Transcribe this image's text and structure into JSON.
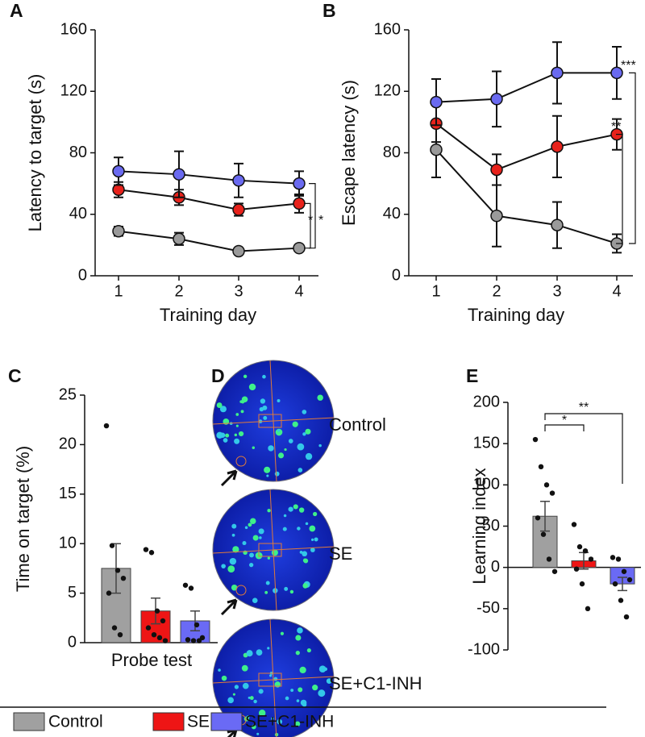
{
  "chart_data": [
    {
      "panel": "A",
      "type": "line",
      "ylabel": "Latency to target (s)",
      "xlabel": "Training day",
      "categories": [
        "1",
        "2",
        "3",
        "4"
      ],
      "ylim": [
        0,
        160
      ],
      "yticks": [
        0,
        40,
        80,
        120,
        160
      ],
      "series": [
        {
          "name": "Control",
          "color": "#9a9a9a",
          "values": [
            29,
            24,
            16,
            18
          ],
          "errors": [
            3,
            4,
            2,
            2
          ]
        },
        {
          "name": "SE",
          "color": "#e8221b",
          "values": [
            56,
            51,
            43,
            47
          ],
          "errors": [
            5,
            5,
            4,
            6
          ]
        },
        {
          "name": "SE+C1-INH",
          "color": "#6a6af0",
          "values": [
            68,
            66,
            62,
            60
          ],
          "errors": [
            9,
            15,
            11,
            8
          ]
        }
      ],
      "annotations": [
        "*",
        "*"
      ]
    },
    {
      "panel": "B",
      "type": "line",
      "ylabel": "Escape latency (s)",
      "xlabel": "Training day",
      "categories": [
        "1",
        "2",
        "3",
        "4"
      ],
      "ylim": [
        0,
        160
      ],
      "yticks": [
        0,
        40,
        80,
        120,
        160
      ],
      "series": [
        {
          "name": "Control",
          "color": "#9a9a9a",
          "values": [
            82,
            39,
            33,
            21
          ],
          "errors": [
            18,
            20,
            15,
            6
          ]
        },
        {
          "name": "SE",
          "color": "#e8221b",
          "values": [
            99,
            69,
            84,
            92
          ],
          "errors": [
            12,
            10,
            20,
            10
          ]
        },
        {
          "name": "SE+C1-INH",
          "color": "#6a6af0",
          "values": [
            113,
            115,
            132,
            132
          ],
          "errors": [
            15,
            18,
            20,
            17
          ]
        }
      ],
      "annotations": [
        "***",
        "**"
      ]
    },
    {
      "panel": "C",
      "type": "bar",
      "ylabel": "Time on target (%)",
      "xlabel": "Probe test",
      "ylim": [
        0,
        25
      ],
      "yticks": [
        0,
        5,
        10,
        15,
        20,
        25
      ],
      "colors": [
        "#a0a0a0",
        "#ee1515",
        "#6a6af5"
      ],
      "values": [
        7.5,
        3.2,
        2.2
      ],
      "errors": [
        2.5,
        1.3,
        1.0
      ],
      "points": [
        [
          21.9,
          9.8,
          7.3,
          6.5,
          5.0,
          1.5,
          0.8
        ],
        [
          9.4,
          9.1,
          3.2,
          2.2,
          1.5,
          0.8,
          0.5,
          0.2
        ],
        [
          5.8,
          5.5,
          1.8,
          0.5,
          0.3,
          0.2,
          0.2
        ]
      ],
      "annotations": []
    },
    {
      "panel": "E",
      "type": "bar",
      "ylabel": "Learning index",
      "ylim": [
        -100,
        200
      ],
      "yticks": [
        -100,
        -50,
        0,
        50,
        100,
        150,
        200
      ],
      "colors": [
        "#a0a0a0",
        "#ee1515",
        "#6a6af5"
      ],
      "values": [
        62,
        8,
        -20
      ],
      "errors": [
        18,
        10,
        8
      ],
      "points": [
        [
          155,
          122,
          100,
          90,
          60,
          40,
          10,
          -5
        ],
        [
          52,
          25,
          20,
          10,
          -2,
          -20,
          -50
        ],
        [
          12,
          10,
          -5,
          -15,
          -20,
          -40,
          -60
        ]
      ],
      "annotations": [
        "*",
        "**"
      ]
    }
  ],
  "panel_d": {
    "panel": "D",
    "labels": [
      "Control",
      "SE",
      "SE+C1-INH"
    ]
  }
}
